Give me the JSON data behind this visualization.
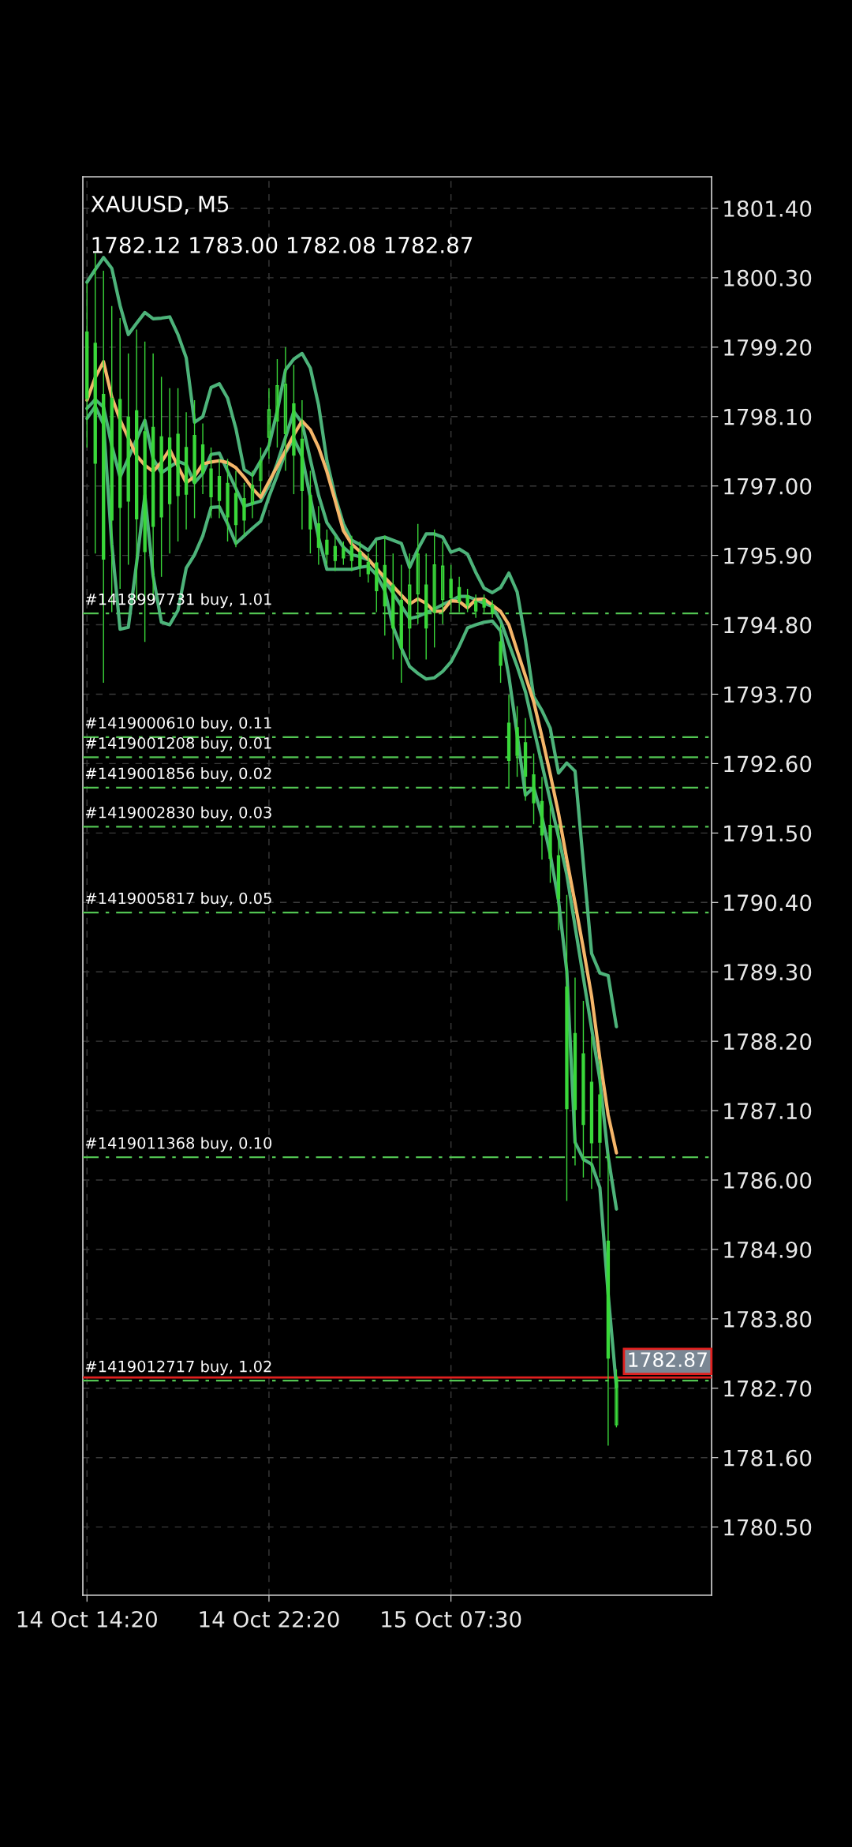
{
  "chart_data": {
    "type": "candlestick",
    "title": "XAUUSD, M5",
    "subtitle": "1782.12 1783.00 1782.08 1782.87",
    "color": "#3ad83a",
    "categories": [
      "14 Oct 14:20",
      null,
      null,
      null,
      null,
      null,
      null,
      null,
      null,
      null,
      null,
      null,
      null,
      null,
      null,
      null,
      null,
      null,
      null,
      null,
      null,
      null,
      "14 Oct 22:20",
      null,
      null,
      null,
      null,
      null,
      null,
      null,
      null,
      null,
      null,
      null,
      null,
      null,
      null,
      null,
      null,
      null,
      null,
      null,
      null,
      null,
      "15 Oct 07:30",
      null,
      null,
      null,
      null,
      null,
      null,
      null,
      null,
      null,
      null,
      null,
      null,
      null,
      null,
      null,
      null,
      null,
      null,
      null,
      null,
      null,
      null,
      null,
      null,
      null,
      null,
      null,
      null,
      null,
      null,
      null
    ],
    "ohlc": [
      [
        1799.44,
        1800.22,
        1797.61,
        1798.39
      ],
      [
        1799.26,
        1800.69,
        1795.93,
        1797.36
      ],
      [
        1798.45,
        1800.41,
        1793.88,
        1795.84
      ],
      [
        1798.39,
        1799.85,
        1795.0,
        1796.46
      ],
      [
        1798.37,
        1799.66,
        1795.37,
        1796.66
      ],
      [
        1798.09,
        1799.1,
        1795.75,
        1796.76
      ],
      [
        1798.19,
        1799.48,
        1795.19,
        1796.48
      ],
      [
        1797.86,
        1799.29,
        1794.53,
        1795.96
      ],
      [
        1797.93,
        1799.1,
        1795.19,
        1796.36
      ],
      [
        1797.78,
        1798.73,
        1795.56,
        1796.51
      ],
      [
        1797.76,
        1798.55,
        1795.93,
        1796.72
      ],
      [
        1797.82,
        1798.55,
        1796.12,
        1796.85
      ],
      [
        1797.61,
        1798.17,
        1796.31,
        1796.87
      ],
      [
        1797.8,
        1798.36,
        1796.49,
        1797.05
      ],
      [
        1797.65,
        1797.99,
        1796.87,
        1797.21
      ],
      [
        1797.27,
        1797.61,
        1796.49,
        1796.83
      ],
      [
        1797.15,
        1797.43,
        1796.49,
        1796.77
      ],
      [
        1797.04,
        1797.43,
        1796.12,
        1796.51
      ],
      [
        1796.88,
        1797.24,
        1796.03,
        1796.39
      ],
      [
        1796.8,
        1797.05,
        1796.21,
        1796.46
      ],
      [
        1796.72,
        1797.24,
        1796.49,
        1797.01
      ],
      [
        1797.09,
        1797.61,
        1796.87,
        1797.39
      ],
      [
        1797.77,
        1798.55,
        1797.43,
        1798.21
      ],
      [
        1798.03,
        1799.01,
        1797.61,
        1798.59
      ],
      [
        1797.83,
        1799.2,
        1797.24,
        1798.61
      ],
      [
        1798.3,
        1798.92,
        1796.87,
        1797.49
      ],
      [
        1797.74,
        1798.36,
        1796.31,
        1796.93
      ],
      [
        1796.85,
        1797.24,
        1795.93,
        1796.32
      ],
      [
        1796.4,
        1796.68,
        1795.75,
        1796.03
      ],
      [
        1796.14,
        1796.31,
        1795.75,
        1795.92
      ],
      [
        1796.04,
        1796.21,
        1795.65,
        1795.82
      ],
      [
        1796.01,
        1796.12,
        1795.75,
        1795.86
      ],
      [
        1796.04,
        1796.21,
        1795.65,
        1795.82
      ],
      [
        1795.95,
        1796.12,
        1795.56,
        1795.73
      ],
      [
        1795.79,
        1795.93,
        1795.47,
        1795.61
      ],
      [
        1795.78,
        1796.12,
        1795.0,
        1795.34
      ],
      [
        1795.74,
        1796.21,
        1794.63,
        1795.1
      ],
      [
        1795.43,
        1795.93,
        1794.25,
        1794.75
      ],
      [
        1795.19,
        1795.75,
        1793.88,
        1794.44
      ],
      [
        1794.75,
        1795.93,
        1794.25,
        1795.43
      ],
      [
        1795.29,
        1796.4,
        1794.81,
        1795.92
      ],
      [
        1795.43,
        1795.93,
        1794.25,
        1794.75
      ],
      [
        1795.0,
        1796.31,
        1794.44,
        1795.75
      ],
      [
        1795.2,
        1796.12,
        1794.81,
        1795.73
      ],
      [
        1795.52,
        1795.75,
        1795.0,
        1795.23
      ],
      [
        1795.39,
        1795.56,
        1795.0,
        1795.17
      ],
      [
        1795.26,
        1795.37,
        1795.0,
        1795.11
      ],
      [
        1795.17,
        1795.28,
        1794.91,
        1795.02
      ],
      [
        1795.2,
        1795.28,
        1795.0,
        1795.08
      ],
      [
        1795.11,
        1795.19,
        1794.91,
        1794.99
      ],
      [
        1794.53,
        1794.81,
        1793.88,
        1794.16
      ],
      [
        1793.24,
        1793.69,
        1792.2,
        1792.65
      ],
      [
        1793.17,
        1793.51,
        1792.39,
        1792.73
      ],
      [
        1792.93,
        1793.32,
        1792.01,
        1792.4
      ],
      [
        1792.42,
        1792.76,
        1791.64,
        1791.98
      ],
      [
        1792.0,
        1792.39,
        1791.08,
        1791.47
      ],
      [
        1791.62,
        1792.01,
        1790.71,
        1791.1
      ],
      [
        1791.14,
        1791.64,
        1789.96,
        1790.46
      ],
      [
        1789.06,
        1790.52,
        1785.67,
        1787.13
      ],
      [
        1788.32,
        1789.21,
        1786.23,
        1787.12
      ],
      [
        1788.0,
        1788.84,
        1786.04,
        1786.88
      ],
      [
        1787.55,
        1788.28,
        1785.86,
        1786.59
      ],
      [
        1787.35,
        1787.91,
        1786.04,
        1786.6
      ],
      [
        1785.03,
        1786.42,
        1781.79,
        1783.18
      ],
      [
        1782.12,
        1783.0,
        1782.08,
        1782.87
      ],
      null,
      null,
      null,
      null,
      null,
      null,
      null,
      null,
      null,
      null,
      null
    ],
    "series": [
      {
        "type": "line",
        "color": "#4db37a",
        "values": [
          1800.23,
          1800.43,
          1800.62,
          1800.45,
          1799.86,
          1799.4,
          1799.58,
          1799.75,
          1799.65,
          1799.66,
          1799.68,
          1799.4,
          1799.03,
          1798.01,
          1798.1,
          1798.56,
          1798.62,
          1798.39,
          1797.91,
          1797.26,
          1797.17,
          1797.4,
          1797.64,
          1798.19,
          1798.84,
          1799.01,
          1799.1,
          1798.87,
          1798.28,
          1797.4,
          1796.83,
          1796.4,
          1796.14,
          1796.07,
          1795.98,
          1796.16,
          1796.19,
          1796.14,
          1796.09,
          1795.71,
          1796.0,
          1796.24,
          1796.24,
          1796.19,
          1795.95,
          1796.0,
          1795.92,
          1795.63,
          1795.38,
          1795.31,
          1795.39,
          1795.62,
          1795.32,
          1794.56,
          1793.66,
          1793.44,
          1793.16,
          1792.45,
          1792.61,
          1792.48,
          1791.02,
          1789.59,
          1789.28,
          1789.24,
          1788.43,
          null,
          null,
          null,
          null,
          null,
          null,
          null,
          null,
          null,
          null,
          null
        ]
      },
      {
        "type": "line",
        "color": "#4db37a",
        "values": [
          1798.23,
          1798.37,
          1798.25,
          1797.64,
          1797.14,
          1797.44,
          1797.74,
          1798.04,
          1797.43,
          1797.21,
          1797.3,
          1797.39,
          1797.34,
          1797.05,
          1797.2,
          1797.5,
          1797.52,
          1797.24,
          1796.96,
          1796.68,
          1796.72,
          1796.76,
          1797.01,
          1797.36,
          1797.77,
          1798.18,
          1798.0,
          1797.42,
          1796.85,
          1796.42,
          1796.23,
          1796.03,
          1795.91,
          1795.88,
          1795.83,
          1795.7,
          1795.5,
          1795.3,
          1795.1,
          1794.9,
          1794.93,
          1794.99,
          1795.05,
          1795.12,
          1795.18,
          1795.25,
          1795.25,
          1795.2,
          1795.14,
          1795.09,
          1794.86,
          1794.5,
          1794.14,
          1793.74,
          1793.16,
          1792.59,
          1792.01,
          1791.44,
          1790.84,
          1790.02,
          1789.21,
          1788.4,
          1787.59,
          1786.37,
          1785.54,
          null,
          null,
          null,
          null,
          null,
          null,
          null,
          null,
          null,
          null,
          null
        ]
      },
      {
        "type": "line",
        "color": "#4db37a",
        "values": [
          1798.07,
          1798.26,
          1797.98,
          1796.08,
          1794.73,
          1794.76,
          1795.78,
          1796.85,
          1795.57,
          1794.84,
          1794.8,
          1795.03,
          1795.7,
          1795.91,
          1796.21,
          1796.66,
          1796.67,
          1796.4,
          1796.09,
          1796.21,
          1796.33,
          1796.44,
          1796.83,
          1797.17,
          1797.53,
          1797.75,
          1797.47,
          1796.82,
          1796.18,
          1795.68,
          1795.68,
          1795.68,
          1795.68,
          1795.71,
          1795.73,
          1795.59,
          1795.34,
          1794.77,
          1794.43,
          1794.14,
          1794.03,
          1793.94,
          1793.96,
          1794.06,
          1794.21,
          1794.46,
          1794.75,
          1794.8,
          1794.84,
          1794.86,
          1794.7,
          1793.98,
          1793.06,
          1792.1,
          1792.22,
          1791.75,
          1791.16,
          1790.43,
          1789.31,
          1786.6,
          1786.33,
          1786.25,
          1785.88,
          1784.19,
          1782.72,
          null,
          null,
          null,
          null,
          null,
          null,
          null,
          null,
          null,
          null,
          null
        ]
      },
      {
        "type": "line",
        "color": "#f5b66a",
        "values": [
          1798.36,
          1798.72,
          1798.97,
          1798.41,
          1798.05,
          1797.76,
          1797.48,
          1797.33,
          1797.23,
          1797.38,
          1797.58,
          1797.31,
          1797.05,
          1797.15,
          1797.35,
          1797.38,
          1797.4,
          1797.37,
          1797.29,
          1797.14,
          1796.96,
          1796.82,
          1797.07,
          1797.31,
          1797.56,
          1797.81,
          1798.03,
          1797.89,
          1797.61,
          1797.23,
          1796.77,
          1796.29,
          1796.08,
          1795.96,
          1795.84,
          1795.69,
          1795.55,
          1795.41,
          1795.27,
          1795.13,
          1795.21,
          1795.14,
          1795.01,
          1795.02,
          1795.18,
          1795.17,
          1795.07,
          1795.2,
          1795.21,
          1795.11,
          1795.01,
          1794.8,
          1794.39,
          1793.99,
          1793.58,
          1793.02,
          1792.43,
          1791.81,
          1791.08,
          1790.39,
          1789.67,
          1788.91,
          1787.92,
          1787.03,
          1786.43,
          null,
          null,
          null,
          null,
          null,
          null,
          null,
          null,
          null,
          null,
          null
        ]
      }
    ],
    "ref_lines": [
      {
        "axis": "y",
        "value": 1794.98,
        "label": "#1418997731 buy, 1.01",
        "color": "#52c452",
        "line_style": "dashed"
      },
      {
        "axis": "y",
        "value": 1793.02,
        "label": "#1419000610 buy, 0.11",
        "color": "#52c452",
        "line_style": "dashed"
      },
      {
        "axis": "y",
        "value": 1792.7,
        "label": "#1419001208 buy, 0.01",
        "color": "#52c452",
        "line_style": "dashed"
      },
      {
        "axis": "y",
        "value": 1792.22,
        "label": "#1419001856 buy, 0.02",
        "color": "#52c452",
        "line_style": "dashed"
      },
      {
        "axis": "y",
        "value": 1791.6,
        "label": "#1419002830 buy, 0.03",
        "color": "#52c452",
        "line_style": "dashed"
      },
      {
        "axis": "y",
        "value": 1790.24,
        "label": "#1419005817 buy, 0.05",
        "color": "#52c452",
        "line_style": "dashed"
      },
      {
        "axis": "y",
        "value": 1786.36,
        "label": "#1419011368 buy, 0.10",
        "color": "#52c452",
        "line_style": "dashed"
      },
      {
        "axis": "y",
        "value": 1782.82,
        "label": "#1419012717 buy, 1.02",
        "color": "#52c452",
        "line_style": "dashed"
      },
      {
        "axis": "y",
        "value": 1782.87,
        "label": "1782.87",
        "color": "#e0201f",
        "line_style": "solid"
      }
    ],
    "ylim": [
      1779.42,
      1801.9
    ],
    "yticks": [
      {
        "value": 1801.4,
        "label": "1801.40"
      },
      {
        "value": 1800.3,
        "label": "1800.30"
      },
      {
        "value": 1799.2,
        "label": "1799.20"
      },
      {
        "value": 1798.1,
        "label": "1798.10"
      },
      {
        "value": 1797.0,
        "label": "1797.00"
      },
      {
        "value": 1795.9,
        "label": "1795.90"
      },
      {
        "value": 1794.8,
        "label": "1794.80"
      },
      {
        "value": 1793.7,
        "label": "1793.70"
      },
      {
        "value": 1792.6,
        "label": "1792.60"
      },
      {
        "value": 1791.5,
        "label": "1791.50"
      },
      {
        "value": 1790.4,
        "label": "1790.40"
      },
      {
        "value": 1789.3,
        "label": "1789.30"
      },
      {
        "value": 1788.2,
        "label": "1788.20"
      },
      {
        "value": 1787.1,
        "label": "1787.10"
      },
      {
        "value": 1786.0,
        "label": "1786.00"
      },
      {
        "value": 1784.9,
        "label": "1784.90"
      },
      {
        "value": 1783.8,
        "label": "1783.80"
      },
      {
        "value": 1782.7,
        "label": "1782.70"
      },
      {
        "value": 1781.6,
        "label": "1781.60"
      },
      {
        "value": 1780.5,
        "label": "1780.50"
      }
    ],
    "grid": true
  }
}
